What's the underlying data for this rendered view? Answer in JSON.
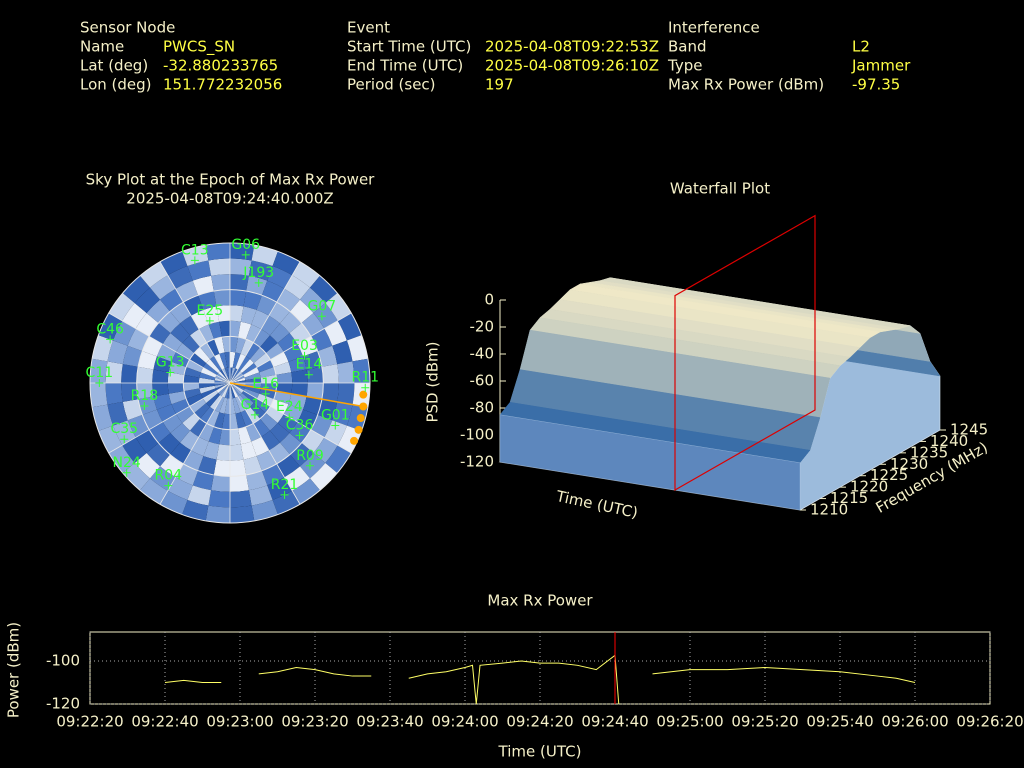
{
  "info": {
    "sensor_node": {
      "title": "Sensor Node",
      "rows": [
        [
          "Name",
          "PWCS_SN"
        ],
        [
          "Lat (deg)",
          "-32.880233765"
        ],
        [
          "Lon (deg)",
          "151.772232056"
        ]
      ]
    },
    "event": {
      "title": "Event",
      "rows": [
        [
          "Start Time (UTC)",
          "2025-04-08T09:22:53Z"
        ],
        [
          "End Time (UTC)",
          "2025-04-08T09:26:10Z"
        ],
        [
          "Period (sec)",
          "197"
        ]
      ]
    },
    "interference": {
      "title": "Interference",
      "rows": [
        [
          "Band",
          "L2"
        ],
        [
          "Type",
          "Jammer"
        ],
        [
          "Max Rx Power (dBm)",
          "-97.35"
        ]
      ]
    }
  },
  "chart_data": [
    {
      "type": "polar",
      "title": "Sky Plot at the Epoch of Max Rx Power",
      "subtitle": "2025-04-08T09:24:40.000Z",
      "elevation_ticks": [
        0,
        30,
        60
      ],
      "color": "#33ff33",
      "satellites": [
        "G06",
        "C13",
        "J193",
        "G07",
        "R11",
        "G01",
        "R09",
        "R21",
        "R04",
        "N24",
        "C35",
        "C11",
        "C46",
        "E03",
        "E14",
        "G13",
        "E16",
        "E25",
        "G14",
        "E24",
        "C36",
        "R18"
      ],
      "azimuth": [
        7,
        344,
        16,
        54,
        92,
        112,
        136,
        154,
        211,
        229,
        242,
        270,
        290,
        70,
        84,
        280,
        107,
        342,
        142,
        120,
        127,
        255
      ],
      "elevation": [
        7,
        8,
        23,
        17,
        3,
        17,
        16,
        10,
        13,
        2,
        13,
        6,
        8,
        39,
        39,
        51,
        66,
        48,
        64,
        46,
        34,
        33
      ],
      "interference": {
        "color": "#ffa500",
        "azimuth": [
          95,
          100,
          105,
          110,
          115
        ],
        "elevation": [
          4,
          3,
          3,
          2,
          2
        ]
      }
    },
    {
      "type": "waterfall",
      "title": "Waterfall Plot",
      "xlabel": "Time (UTC)",
      "ylabel": "Frequency (MHz)",
      "zlabel": "PSD (dBm)",
      "xlim": [
        "09:22:20",
        "09:26:20"
      ],
      "marker": "09:24:40",
      "marker_color": "#dd0000",
      "ylim": [
        1210,
        1245
      ],
      "yticks": [
        1210,
        1215,
        1220,
        1225,
        1230,
        1235,
        1240,
        1245
      ],
      "zlim": [
        -120,
        0
      ],
      "zticks": [
        0,
        -20,
        -40,
        -60,
        -80,
        -100,
        -120
      ],
      "x": [
        1210,
        1212.5,
        1215,
        1217.5,
        1220,
        1222.5,
        1225,
        1227.5,
        1230,
        1232.5,
        1235,
        1237.5,
        1240,
        1242.5,
        1245
      ],
      "values": [
        -85,
        -80,
        -60,
        -35,
        -30,
        -28,
        -25,
        -22,
        -22,
        -25,
        -28,
        -30,
        -40,
        -65,
        -80
      ]
    },
    {
      "type": "line",
      "title": "Max Rx Power",
      "xlabel": "Time (UTC)",
      "ylabel": "Power (dBm)",
      "color": "#ffff66",
      "marker": "09:24:40",
      "marker_color": "#ff0000",
      "grid": true,
      "xlim": [
        "09:22:20",
        "09:26:20"
      ],
      "xticks": [
        "09:22:20",
        "09:22:40",
        "09:23:00",
        "09:23:20",
        "09:23:40",
        "09:24:00",
        "09:24:20",
        "09:24:40",
        "09:25:00",
        "09:25:20",
        "09:25:40",
        "09:26:00",
        "09:26:20"
      ],
      "ylim": [
        -120,
        -86.5
      ],
      "yticks": [
        -120,
        -100
      ],
      "x": [
        "09:22:40",
        "09:22:45",
        "09:22:50",
        "09:22:55",
        "09:23:00",
        "09:23:05",
        "09:23:10",
        "09:23:15",
        "09:23:20",
        "09:23:25",
        "09:23:30",
        "09:23:35",
        "09:23:40",
        "09:23:45",
        "09:23:50",
        "09:23:55",
        "09:24:00",
        "09:24:02",
        "09:24:03",
        "09:24:04",
        "09:24:10",
        "09:24:15",
        "09:24:20",
        "09:24:25",
        "09:24:30",
        "09:24:35",
        "09:24:40",
        "09:24:41",
        "09:24:45",
        "09:24:50",
        "09:24:55",
        "09:25:00",
        "09:25:10",
        "09:25:20",
        "09:25:30",
        "09:25:40",
        "09:25:50",
        "09:25:55",
        "09:26:00"
      ],
      "values": [
        -110,
        -109,
        -110,
        -110,
        null,
        -106,
        -105,
        -103,
        -104,
        -106,
        -107,
        -107,
        null,
        -108,
        -106,
        -105,
        -103,
        -102,
        -120,
        -102,
        -101,
        -100,
        -101,
        -101,
        -102,
        -104,
        -97.35,
        -120,
        null,
        -106,
        -105,
        -104,
        -104,
        -103,
        -104,
        -105,
        -107,
        -108,
        -110
      ]
    }
  ]
}
